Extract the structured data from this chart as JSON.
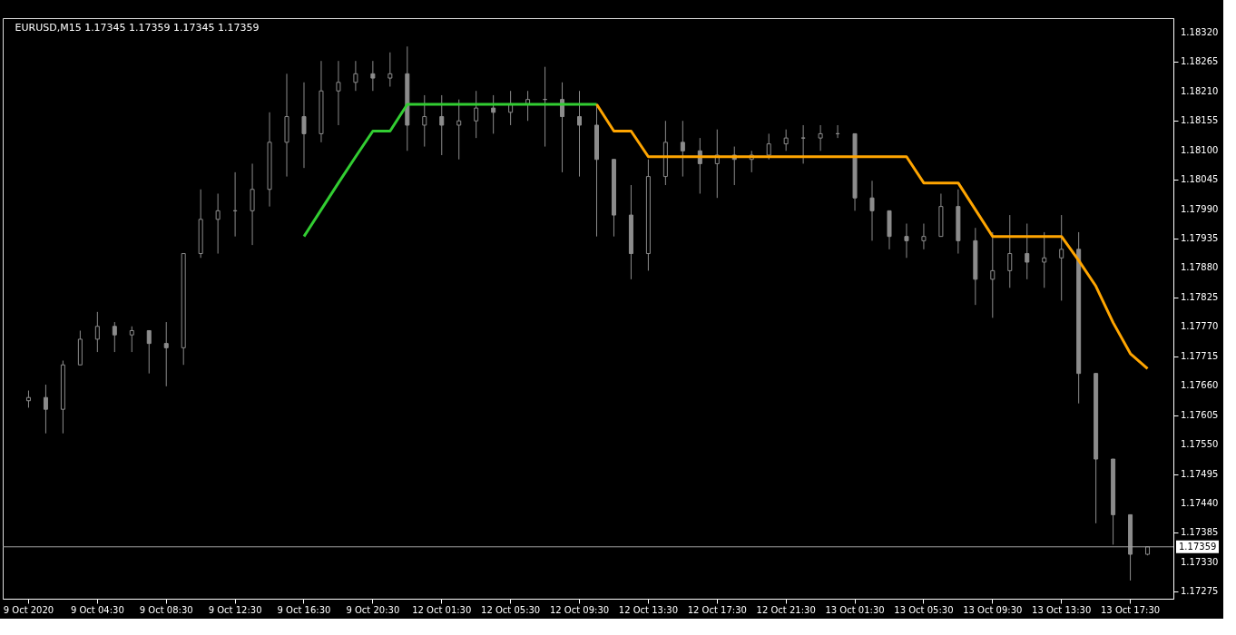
{
  "chart_data": {
    "type": "candlestick",
    "title": "EURUSD,M15  1.17345 1.17359 1.17345 1.17359",
    "categories": [
      "9 Oct 2020",
      null,
      null,
      null,
      "9 Oct 04:30",
      null,
      null,
      null,
      "9 Oct 08:30",
      null,
      null,
      null,
      "9 Oct 12:30",
      null,
      null,
      null,
      "9 Oct 16:30",
      null,
      null,
      null,
      "9 Oct 20:30",
      null,
      null,
      null,
      "12 Oct 01:30",
      null,
      null,
      null,
      "12 Oct 05:30",
      null,
      null,
      null,
      "12 Oct 09:30",
      null,
      null,
      null,
      "12 Oct 13:30",
      null,
      null,
      null,
      "12 Oct 17:30",
      null,
      null,
      null,
      "12 Oct 21:30",
      null,
      null,
      null,
      "13 Oct 01:30",
      null,
      null,
      null,
      "13 Oct 05:30",
      null,
      null,
      null,
      "13 Oct 09:30",
      null,
      null,
      null,
      "13 Oct 13:30",
      null,
      null,
      null,
      "13 Oct 17:30",
      null
    ],
    "color": "#8c8c8c",
    "ohlc": [
      [
        1.17632,
        1.17651,
        1.17619,
        1.17638
      ],
      [
        1.17638,
        1.17662,
        1.17571,
        1.17616
      ],
      [
        1.17616,
        1.17707,
        1.17571,
        1.17699
      ],
      [
        1.17699,
        1.17763,
        1.17699,
        1.17747
      ],
      [
        1.17747,
        1.17798,
        1.17723,
        1.17771
      ],
      [
        1.17771,
        1.17779,
        1.17723,
        1.17755
      ],
      [
        1.17755,
        1.17771,
        1.17723,
        1.17763
      ],
      [
        1.17763,
        1.17763,
        1.17683,
        1.17739
      ],
      [
        1.17739,
        1.17779,
        1.17659,
        1.17731
      ],
      [
        1.17731,
        1.17907,
        1.17699,
        1.17907
      ],
      [
        1.17907,
        1.18027,
        1.17899,
        1.17971
      ],
      [
        1.17971,
        1.18019,
        1.17907,
        1.17987
      ],
      [
        1.17987,
        1.18059,
        1.17939,
        1.17987
      ],
      [
        1.17987,
        1.18075,
        1.17923,
        1.18027
      ],
      [
        1.18027,
        1.18171,
        1.17995,
        1.18115
      ],
      [
        1.18115,
        1.18243,
        1.18051,
        1.18163
      ],
      [
        1.18163,
        1.18227,
        1.18067,
        1.18131
      ],
      [
        1.18131,
        1.18267,
        1.18115,
        1.18211
      ],
      [
        1.18211,
        1.18267,
        1.18147,
        1.18227
      ],
      [
        1.18227,
        1.18267,
        1.18211,
        1.18243
      ],
      [
        1.18243,
        1.18267,
        1.18211,
        1.18235
      ],
      [
        1.18235,
        1.18283,
        1.18219,
        1.18243
      ],
      [
        1.18243,
        1.18294,
        1.18099,
        1.18147
      ],
      [
        1.18147,
        1.18203,
        1.18107,
        1.18163
      ],
      [
        1.18163,
        1.18203,
        1.18091,
        1.18147
      ],
      [
        1.18147,
        1.18195,
        1.18083,
        1.18155
      ],
      [
        1.18155,
        1.18211,
        1.18123,
        1.18179
      ],
      [
        1.18179,
        1.18203,
        1.18131,
        1.18171
      ],
      [
        1.18171,
        1.18211,
        1.18147,
        1.18187
      ],
      [
        1.18187,
        1.18211,
        1.18155,
        1.18195
      ],
      [
        1.18195,
        1.18256,
        1.18107,
        1.18195
      ],
      [
        1.18195,
        1.18227,
        1.18059,
        1.18163
      ],
      [
        1.18163,
        1.18211,
        1.18051,
        1.18147
      ],
      [
        1.18147,
        1.18187,
        1.17939,
        1.18083
      ],
      [
        1.18083,
        1.18083,
        1.17939,
        1.17979
      ],
      [
        1.17979,
        1.18035,
        1.17859,
        1.17907
      ],
      [
        1.17907,
        1.18083,
        1.17875,
        1.18051
      ],
      [
        1.18051,
        1.18155,
        1.18035,
        1.18115
      ],
      [
        1.18115,
        1.18155,
        1.18051,
        1.18099
      ],
      [
        1.18099,
        1.18123,
        1.18019,
        1.18075
      ],
      [
        1.18075,
        1.18139,
        1.18011,
        1.18091
      ],
      [
        1.18091,
        1.18107,
        1.18035,
        1.18083
      ],
      [
        1.18083,
        1.18099,
        1.18059,
        1.18091
      ],
      [
        1.18091,
        1.18131,
        1.18083,
        1.18112
      ],
      [
        1.18112,
        1.18139,
        1.18099,
        1.18123
      ],
      [
        1.18123,
        1.18147,
        1.18075,
        1.18123
      ],
      [
        1.18123,
        1.18147,
        1.18099,
        1.18131
      ],
      [
        1.18131,
        1.18147,
        1.18123,
        1.18131
      ],
      [
        1.18131,
        1.18131,
        1.17987,
        1.18011
      ],
      [
        1.18011,
        1.18043,
        1.17931,
        1.17987
      ],
      [
        1.17987,
        1.17987,
        1.17915,
        1.17939
      ],
      [
        1.17939,
        1.17963,
        1.17899,
        1.17931
      ],
      [
        1.17931,
        1.17963,
        1.17915,
        1.17939
      ],
      [
        1.17939,
        1.18019,
        1.17939,
        1.17995
      ],
      [
        1.17995,
        1.18027,
        1.17907,
        1.17931
      ],
      [
        1.17931,
        1.17955,
        1.17811,
        1.17859
      ],
      [
        1.17859,
        1.17947,
        1.17787,
        1.17875
      ],
      [
        1.17875,
        1.17979,
        1.17843,
        1.17907
      ],
      [
        1.17907,
        1.17963,
        1.17859,
        1.17891
      ],
      [
        1.17891,
        1.17947,
        1.17843,
        1.17899
      ],
      [
        1.17899,
        1.17979,
        1.17819,
        1.17915
      ],
      [
        1.17915,
        1.17947,
        1.17627,
        1.17683
      ],
      [
        1.17683,
        1.17683,
        1.17403,
        1.17523
      ],
      [
        1.17523,
        1.17523,
        1.17363,
        1.17419
      ],
      [
        1.17419,
        1.17419,
        1.17296,
        1.17345
      ],
      [
        1.17345,
        1.17359,
        1.17343,
        1.17359
      ]
    ],
    "series": [
      {
        "type": "line",
        "color": "#32cd32",
        "values": [
          null,
          null,
          null,
          null,
          null,
          null,
          null,
          null,
          null,
          null,
          null,
          null,
          null,
          null,
          null,
          null,
          1.17939,
          1.17989,
          1.18039,
          1.18088,
          1.18136,
          1.18136,
          1.18186,
          1.18186,
          1.18186,
          1.18186,
          1.18186,
          1.18186,
          1.18186,
          1.18186,
          1.18186,
          1.18186,
          1.18186,
          1.18186,
          null,
          null,
          null,
          null,
          null,
          null,
          null,
          null,
          null,
          null,
          null,
          null,
          null,
          null,
          null,
          null,
          null,
          null,
          null,
          null,
          null,
          null,
          null,
          null,
          null,
          null,
          null,
          null,
          null,
          null,
          null,
          null
        ]
      },
      {
        "type": "line",
        "color": "#ffa500",
        "values": [
          null,
          null,
          null,
          null,
          null,
          null,
          null,
          null,
          null,
          null,
          null,
          null,
          null,
          null,
          null,
          null,
          null,
          null,
          null,
          null,
          null,
          null,
          null,
          null,
          null,
          null,
          null,
          null,
          null,
          null,
          null,
          null,
          null,
          1.18186,
          1.18136,
          1.18136,
          1.18088,
          1.18088,
          1.18088,
          1.18088,
          1.18088,
          1.18088,
          1.18088,
          1.18088,
          1.18088,
          1.18088,
          1.18088,
          1.18088,
          1.18088,
          1.18088,
          1.18088,
          1.18088,
          1.18039,
          1.18039,
          1.18039,
          1.17989,
          1.17939,
          1.17939,
          1.17939,
          1.17939,
          1.17939,
          1.17894,
          1.17846,
          1.17778,
          1.1772,
          1.17692
        ]
      }
    ],
    "ylim": [
      1.17262,
      1.18347
    ],
    "yticks": [
      {
        "value": 1.17275,
        "label": "1.17275"
      },
      {
        "value": 1.1733,
        "label": "1.17330"
      },
      {
        "value": 1.17385,
        "label": "1.17385"
      },
      {
        "value": 1.1744,
        "label": "1.17440"
      },
      {
        "value": 1.17495,
        "label": "1.17495"
      },
      {
        "value": 1.1755,
        "label": "1.17550"
      },
      {
        "value": 1.17605,
        "label": "1.17605"
      },
      {
        "value": 1.1766,
        "label": "1.17660"
      },
      {
        "value": 1.17715,
        "label": "1.17715"
      },
      {
        "value": 1.1777,
        "label": "1.17770"
      },
      {
        "value": 1.17825,
        "label": "1.17825"
      },
      {
        "value": 1.1788,
        "label": "1.17880"
      },
      {
        "value": 1.17935,
        "label": "1.17935"
      },
      {
        "value": 1.1799,
        "label": "1.17990"
      },
      {
        "value": 1.18045,
        "label": "1.18045"
      },
      {
        "value": 1.181,
        "label": "1.18100"
      },
      {
        "value": 1.18155,
        "label": "1.18155"
      },
      {
        "value": 1.1821,
        "label": "1.18210"
      },
      {
        "value": 1.18265,
        "label": "1.18265"
      },
      {
        "value": 1.1832,
        "label": "1.18320"
      }
    ],
    "ref_lines": [
      {
        "axis": "y",
        "value": 1.17359,
        "label": "1.17359",
        "color": "#a0a0a0"
      }
    ],
    "grid": false
  }
}
